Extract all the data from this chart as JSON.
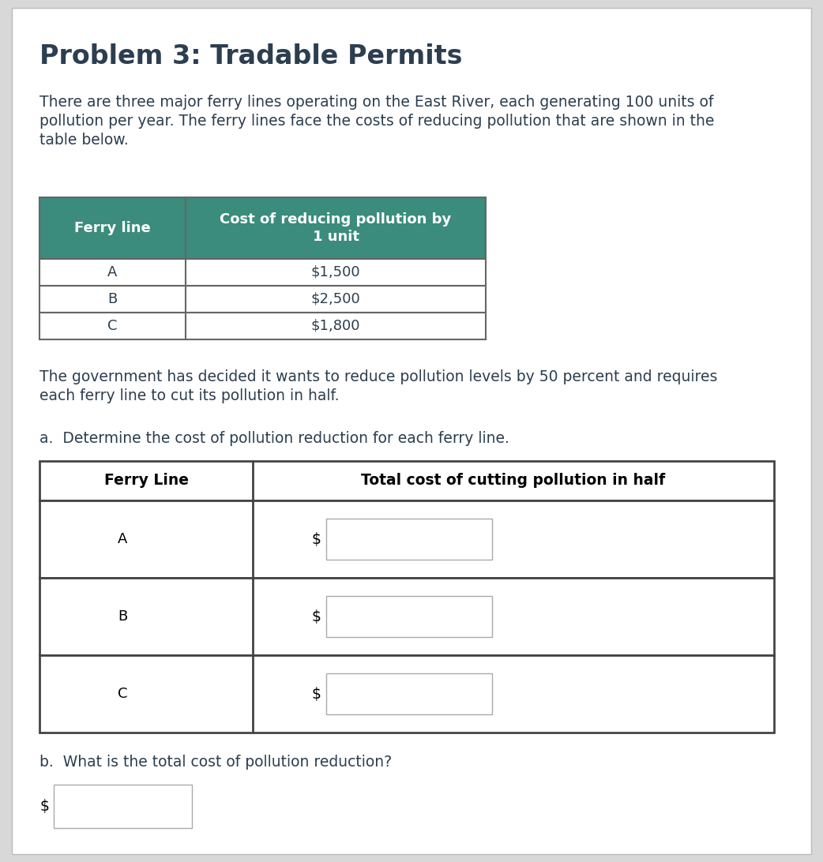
{
  "title": "Problem 3: Tradable Permits",
  "title_fontsize": 24,
  "body_fontsize": 13.5,
  "table_fontsize": 13,
  "paragraph1_lines": [
    "There are three major ferry lines operating on the East River, each generating 100 units of",
    "pollution per year. The ferry lines face the costs of reducing pollution that are shown in the",
    "table below."
  ],
  "table1_header_col1": "Ferry line",
  "table1_header_col2": "Cost of reducing pollution by\n1 unit",
  "table1_rows": [
    [
      "A",
      "$1,500"
    ],
    [
      "B",
      "$2,500"
    ],
    [
      "C",
      "$1,800"
    ]
  ],
  "table1_header_bg": "#3b8c7c",
  "table1_header_color": "#ffffff",
  "table1_border_color": "#666666",
  "paragraph2_lines": [
    "The government has decided it wants to reduce pollution levels by 50 percent and requires",
    "each ferry line to cut its pollution in half."
  ],
  "part_a_label": "a.  Determine the cost of pollution reduction for each ferry line.",
  "table2_header_col1": "Ferry Line",
  "table2_header_col2": "Total cost of cutting pollution in half",
  "table2_rows": [
    [
      "A",
      ""
    ],
    [
      "B",
      ""
    ],
    [
      "C",
      ""
    ]
  ],
  "table2_border_color": "#444444",
  "part_b_label": "b.  What is the total cost of pollution reduction?",
  "background_color": "#ffffff",
  "page_bg": "#d8d8d8",
  "text_color": "#2c3e50",
  "border_color_outer": "#bbbbbb"
}
